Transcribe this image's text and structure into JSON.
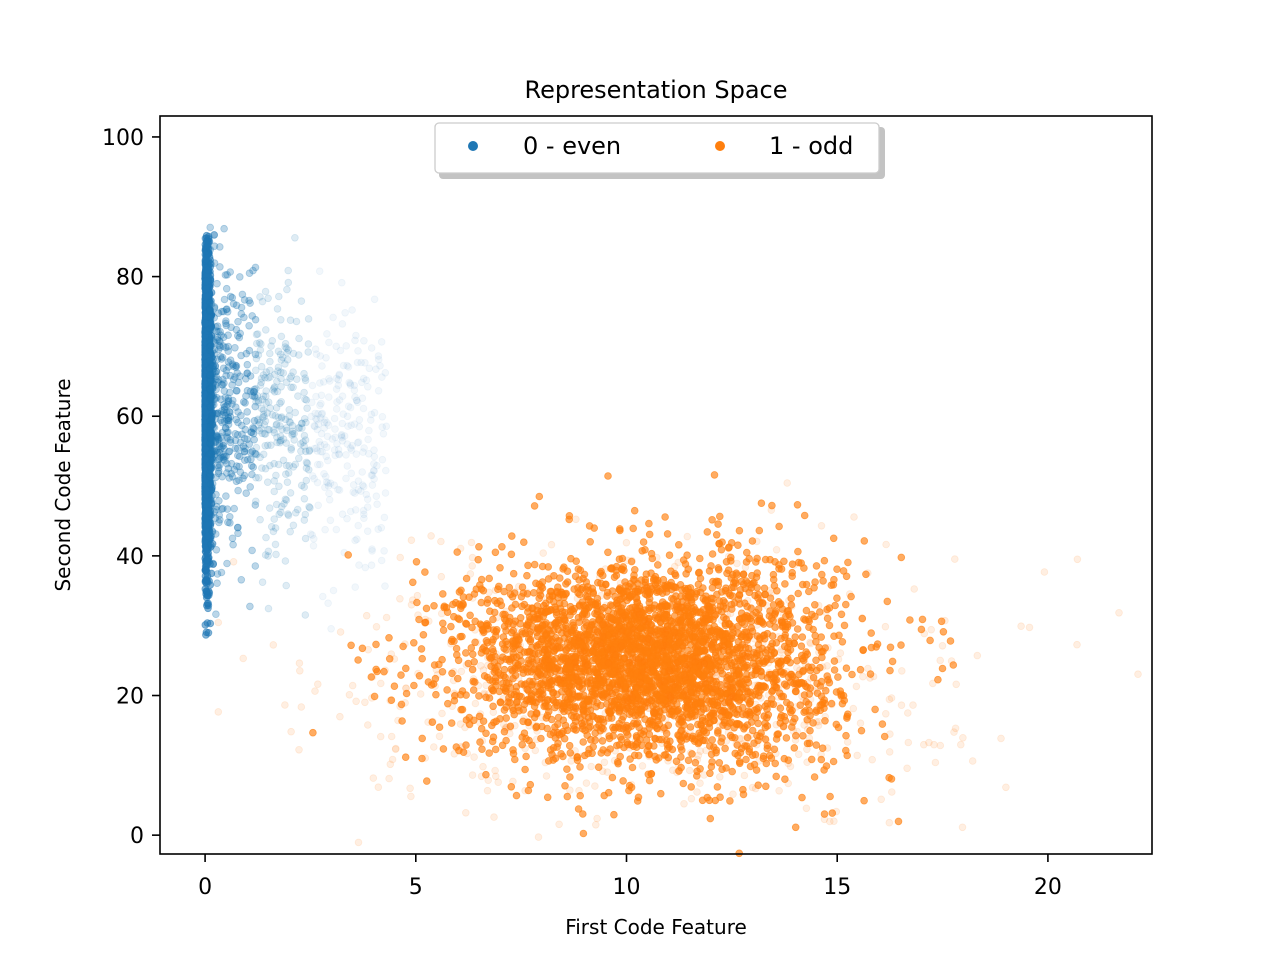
{
  "chart_data": {
    "type": "scatter",
    "title": "Representation Space",
    "xlabel": "First Code Feature",
    "ylabel": "Second Code Feature",
    "xlim": [
      -1.07,
      22.47
    ],
    "ylim": [
      -2.7,
      103.0
    ],
    "xticks": [
      0,
      5,
      10,
      15,
      20
    ],
    "yticks": [
      0,
      20,
      40,
      60,
      80,
      100
    ],
    "grid": false,
    "legend": {
      "placement": "upper center",
      "ncol": 2
    },
    "series": [
      {
        "name": "0 - even",
        "color": "#1f77b4",
        "cluster": {
          "x_center": 0.0,
          "x_spread": 0.05,
          "y_center": 62,
          "y_spread": 11,
          "x_range": [
            0,
            0.1
          ],
          "y_range": [
            27,
            86
          ]
        },
        "tail": {
          "x_range": [
            0.3,
            4.5
          ],
          "y_center": 58,
          "y_spread": 9
        }
      },
      {
        "name": "1 - odd",
        "color": "#ff7f0e",
        "cluster": {
          "x_center": 10.5,
          "x_spread": 2.2,
          "y_center": 25,
          "y_spread": 7,
          "x_range": [
            4,
            20
          ],
          "y_range": [
            4,
            53
          ]
        }
      }
    ]
  }
}
